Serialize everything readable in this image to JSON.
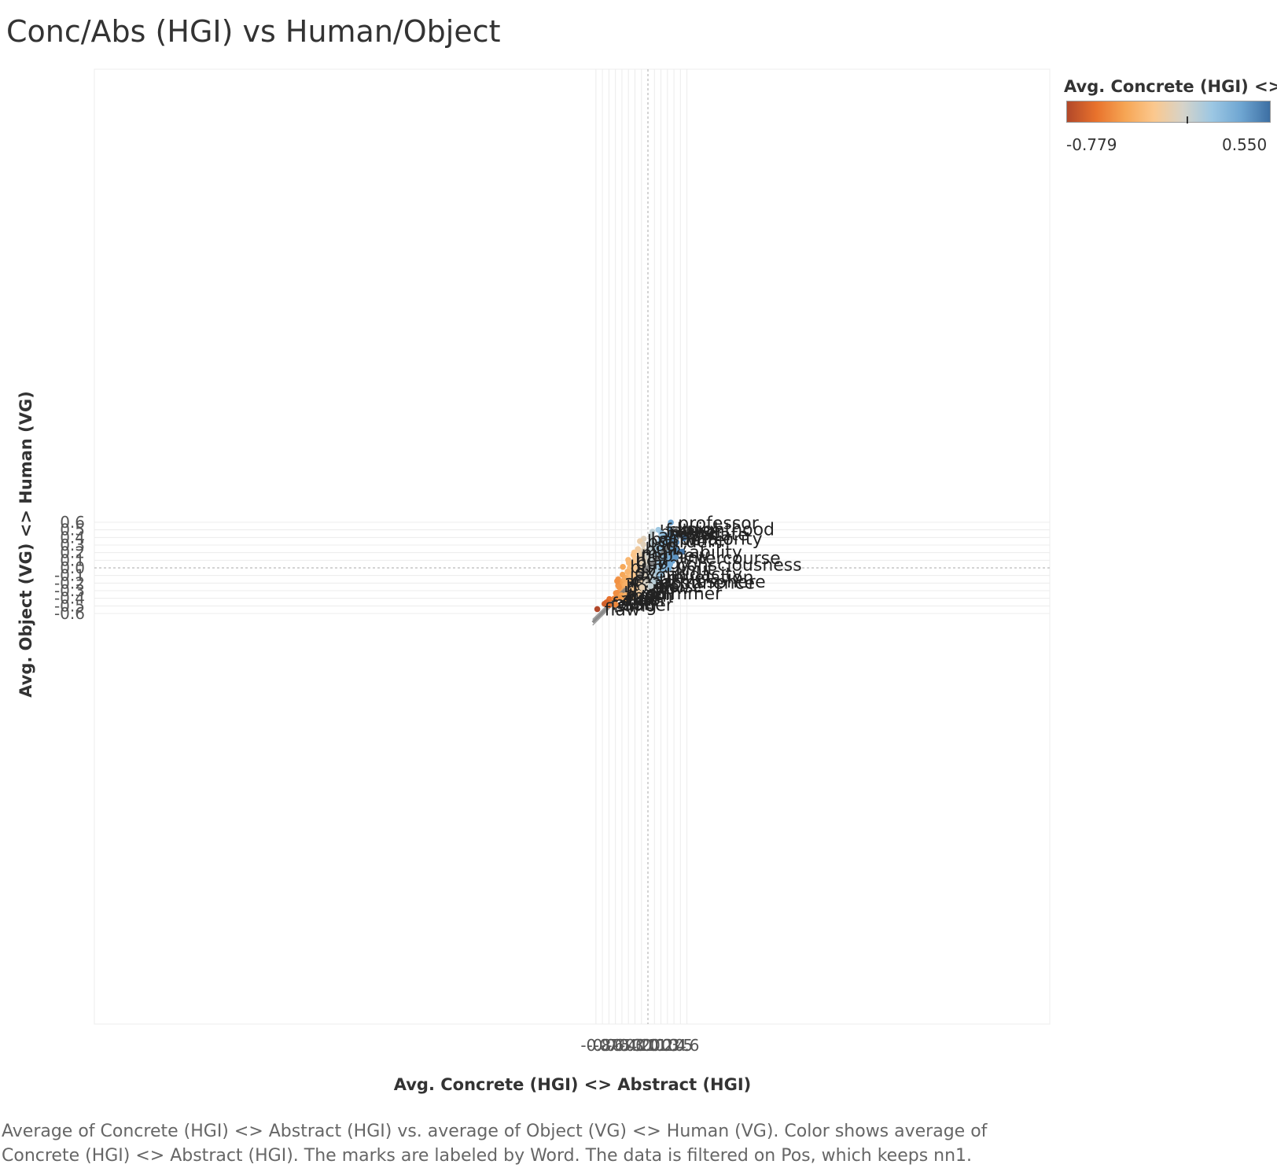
{
  "title": "Conc/Abs (HGI) vs Human/Object",
  "caption": "Average of Concrete (HGI) <> Abstract (HGI) vs. average of Object (VG) <> Human (VG).  Color shows average of Concrete (HGI) <> Abstract (HGI).  The marks are labeled by Word. The data is filtered on Pos, which keeps nn1.",
  "legend": {
    "title": "Avg. Concrete (HGI) <> ..",
    "min_label": "-0.779",
    "max_label": "0.550",
    "colors": [
      "#b2482a",
      "#e8722c",
      "#f6a554",
      "#fbc88e",
      "#d6d3c9",
      "#9cc7e3",
      "#6fa6d2",
      "#3d6fa3"
    ]
  },
  "chart_data": {
    "type": "scatter",
    "title": "Conc/Abs (HGI) vs Human/Object",
    "xlabel": "Avg. Concrete (HGI) <> Abstract (HGI)",
    "ylabel": "Avg. Object (VG) <> Human (VG)",
    "xlim": [
      -0.85,
      0.62
    ],
    "ylim": [
      -0.6,
      0.6
    ],
    "x_ticks": [
      -0.8,
      -0.7,
      -0.6,
      -0.5,
      -0.4,
      -0.3,
      -0.2,
      -0.1,
      0.0,
      0.1,
      0.2,
      0.3,
      0.4,
      0.5,
      0.6
    ],
    "y_ticks": [
      0.6,
      0.5,
      0.4,
      0.3,
      0.2,
      0.1,
      0.0,
      -0.1,
      -0.2,
      -0.3,
      -0.4,
      -0.5,
      -0.6
    ],
    "grid": true,
    "color_range": [
      -0.779,
      0.55
    ],
    "trend_line": {
      "slope": 0.85,
      "intercept": 0.006
    },
    "cloud": {
      "n_points": 3000,
      "center": [
        0.0,
        0.0
      ]
    },
    "points": [
      {
        "word": "professor",
        "x": 0.352,
        "y": 0.597
      },
      {
        "word": "knighthood",
        "x": 0.337,
        "y": 0.511
      },
      {
        "word": "father",
        "x": 0.16,
        "y": 0.5
      },
      {
        "word": "brother",
        "x": 0.069,
        "y": 0.475
      },
      {
        "word": "friend",
        "x": 0.207,
        "y": 0.455
      },
      {
        "word": "advocate",
        "x": 0.207,
        "y": 0.443
      },
      {
        "word": "aunt",
        "x": 0.048,
        "y": 0.427
      },
      {
        "word": "writer",
        "x": 0.41,
        "y": 0.378
      },
      {
        "word": "majority",
        "x": 0.548,
        "y": 0.389
      },
      {
        "word": "barber",
        "x": -0.065,
        "y": 0.383
      },
      {
        "word": "boarder",
        "x": -0.123,
        "y": 0.351
      },
      {
        "word": "lad",
        "x": -0.07,
        "y": 0.307
      },
      {
        "word": "bully",
        "x": -0.153,
        "y": 0.248
      },
      {
        "word": "mare",
        "x": -0.21,
        "y": 0.203
      },
      {
        "word": "ability",
        "x": 0.525,
        "y": 0.214
      },
      {
        "word": "nephew",
        "x": -0.222,
        "y": 0.17
      },
      {
        "word": "intercourse",
        "x": 0.427,
        "y": 0.137
      },
      {
        "word": "bey",
        "x": -0.303,
        "y": 0.104
      },
      {
        "word": "buggy",
        "x": -0.293,
        "y": 0.066
      },
      {
        "word": "consciousness",
        "x": 0.342,
        "y": 0.046
      },
      {
        "word": "bum",
        "x": -0.385,
        "y": 0.013
      },
      {
        "word": "limit",
        "x": 0.32,
        "y": -0.01
      },
      {
        "word": "ox",
        "x": -0.313,
        "y": -0.05
      },
      {
        "word": "audacity",
        "x": 0.197,
        "y": -0.076
      },
      {
        "word": "javelin",
        "x": -0.39,
        "y": -0.09
      },
      {
        "word": "revelation",
        "x": 0.183,
        "y": -0.12
      },
      {
        "word": "cart",
        "x": -0.36,
        "y": -0.153
      },
      {
        "word": "atmosphere",
        "x": 0.105,
        "y": -0.175
      },
      {
        "word": "arse",
        "x": -0.473,
        "y": -0.174
      },
      {
        "word": "arc",
        "x": -0.028,
        "y": -0.2
      },
      {
        "word": "abstinence",
        "x": 0.077,
        "y": -0.19
      },
      {
        "word": "bank",
        "x": -0.338,
        "y": -0.222
      },
      {
        "word": "hole",
        "x": -0.446,
        "y": -0.25
      },
      {
        "word": "glow",
        "x": -0.093,
        "y": -0.258
      },
      {
        "word": "poise",
        "x": 0.043,
        "y": -0.238
      },
      {
        "word": "shimmer",
        "x": -0.142,
        "y": -0.329
      },
      {
        "word": "bund",
        "x": -0.48,
        "y": -0.329
      },
      {
        "word": "coil",
        "x": -0.157,
        "y": -0.34
      },
      {
        "word": "hog",
        "x": -0.408,
        "y": -0.361
      },
      {
        "word": "brim",
        "x": -0.34,
        "y": -0.36
      },
      {
        "word": "stud",
        "x": -0.593,
        "y": -0.41
      },
      {
        "word": "ax",
        "x": -0.52,
        "y": -0.404
      },
      {
        "word": "flax",
        "x": -0.437,
        "y": -0.395
      },
      {
        "word": "clam",
        "x": -0.5,
        "y": -0.418
      },
      {
        "word": "plait",
        "x": -0.637,
        "y": -0.453
      },
      {
        "word": "felon",
        "x": -0.668,
        "y": -0.473
      },
      {
        "word": "sling",
        "x": -0.597,
        "y": -0.49
      },
      {
        "word": "adder",
        "x": -0.498,
        "y": -0.483
      },
      {
        "word": "flaw",
        "x": -0.779,
        "y": -0.542
      }
    ]
  }
}
